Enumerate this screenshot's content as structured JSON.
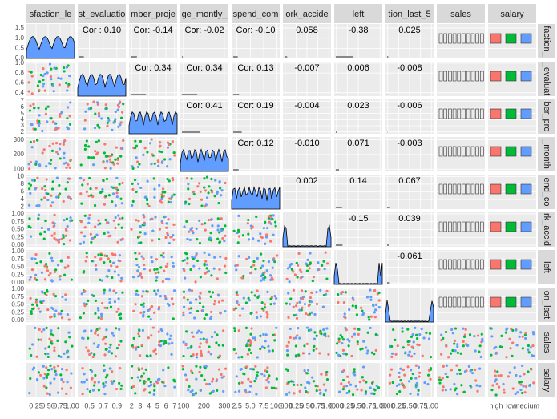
{
  "chart_data": {
    "type": "scatter-matrix",
    "group_colors": [
      "#F8766D",
      "#00BA38",
      "#619CFF"
    ],
    "columns": [
      {
        "strip": "sfaction_le",
        "lim": [
          0.05,
          1.05
        ],
        "ticks": [
          0.25,
          {
            "value": 0.5,
            "label": "0.50"
          },
          0.75,
          {
            "value": 1,
            "label": "1.00"
          }
        ]
      },
      {
        "strip": "st_evaluatio",
        "lim": [
          0.33,
          1.03
        ],
        "ticks": [
          0.5,
          0.7,
          0.9
        ]
      },
      {
        "strip": "mber_proje",
        "lim": [
          1.7,
          7.3
        ],
        "ticks": [
          2,
          3,
          4,
          5,
          6,
          7
        ]
      },
      {
        "strip": "ge_montly_",
        "lim": [
          85,
          320
        ],
        "ticks": [
          100,
          200,
          300
        ]
      },
      {
        "strip": "spend_com",
        "lim": [
          1.5,
          10.5
        ],
        "ticks": [
          2.5,
          {
            "value": 5,
            "label": "5.0"
          },
          7.5,
          {
            "value": 10,
            "label": "10.0"
          }
        ]
      },
      {
        "strip": "ork_accide",
        "lim": [
          -0.05,
          1.05
        ],
        "ticks": [
          {
            "value": 0,
            "label": "0.00"
          },
          0.25,
          {
            "value": 0.5,
            "label": "0.50"
          },
          0.75,
          {
            "value": 1,
            "label": "1.00"
          }
        ]
      },
      {
        "strip": "left",
        "lim": [
          -0.05,
          1.05
        ],
        "ticks": [
          {
            "value": 0,
            "label": "0.00"
          },
          0.25,
          {
            "value": 0.5,
            "label": "0.50"
          },
          0.75,
          {
            "value": 1,
            "label": "1.00"
          }
        ]
      },
      {
        "strip": "tion_last_5",
        "lim": [
          -0.05,
          1.05
        ],
        "ticks": [
          {
            "value": 0,
            "label": "0.00"
          },
          0.25,
          {
            "value": 0.5,
            "label": "0.50"
          },
          0.75,
          {
            "value": 1,
            "label": "1.00"
          }
        ]
      },
      {
        "strip": "sales"
      },
      {
        "strip": "salary",
        "categories": [
          "high",
          "low",
          "medium"
        ]
      }
    ],
    "rows": [
      {
        "strip": "faction_",
        "lim": [
          0,
          1.7
        ],
        "ticks": [
          {
            "value": 0,
            "label": "0.0"
          },
          0.5,
          {
            "value": 1,
            "label": "1.0"
          },
          1.5
        ]
      },
      {
        "strip": "_evaluat",
        "lim": [
          0.33,
          1.03
        ],
        "ticks": [
          0.4,
          0.6,
          0.8,
          {
            "value": 1,
            "label": "1.0"
          }
        ]
      },
      {
        "strip": "ber_pro",
        "lim": [
          1.7,
          7.3
        ],
        "ticks": [
          2,
          3,
          4,
          5,
          6,
          7
        ]
      },
      {
        "strip": "_month",
        "lim": [
          85,
          320
        ],
        "ticks": [
          100,
          200,
          300
        ]
      },
      {
        "strip": "end_co",
        "lim": [
          1.5,
          10.5
        ],
        "ticks": [
          2,
          4,
          6,
          8,
          10
        ]
      },
      {
        "strip": "rk_accid",
        "lim": [
          -0.05,
          1.05
        ],
        "ticks": [
          {
            "value": 0,
            "label": "0.00"
          },
          0.25,
          {
            "value": 0.5,
            "label": "0.50"
          },
          0.75,
          {
            "value": 1,
            "label": "1.00"
          }
        ]
      },
      {
        "strip": "left",
        "lim": [
          -0.05,
          1.05
        ],
        "ticks": [
          {
            "value": 0,
            "label": "0.00"
          },
          0.25,
          {
            "value": 0.5,
            "label": "0.50"
          },
          0.75,
          {
            "value": 1,
            "label": "1.00"
          }
        ]
      },
      {
        "strip": "on_last",
        "lim": [
          -0.05,
          1.05
        ],
        "ticks": [
          {
            "value": 0,
            "label": "0.00"
          },
          0.25,
          {
            "value": 0.5,
            "label": "0.50"
          },
          0.75,
          {
            "value": 1,
            "label": "1.00"
          }
        ]
      },
      {
        "strip": "sales"
      },
      {
        "strip": "salary"
      }
    ],
    "corr": [
      [
        0.1,
        -0.14,
        -0.02,
        -0.1,
        0.058,
        -0.38,
        0.025
      ],
      [
        0.34,
        0.34,
        0.13,
        -0.007,
        0.006,
        -0.008
      ],
      [
        0.41,
        0.19,
        -0.004,
        0.023,
        -0.006
      ],
      [
        0.12,
        -0.01,
        0.071,
        -0.003
      ],
      [
        0.002,
        0.14,
        0.067
      ],
      [
        -0.15,
        0.039
      ],
      [
        -0.061
      ]
    ],
    "corr_labels": [
      [
        "Cor : 0.10",
        "Cor: -0.14",
        "Cor: -0.02",
        "Cor: -0.10",
        "0.058",
        "-0.38",
        "0.025"
      ],
      [
        "Cor: 0.34",
        "Cor: 0.34",
        "Cor: 0.13",
        "-0.007",
        "0.006",
        "-0.008"
      ],
      [
        "Cor: 0.41",
        "Cor: 0.19",
        "-0.004",
        "0.023",
        "-0.006"
      ],
      [
        "Cor: 0.12",
        "-0.010",
        "0.071",
        "-0.003"
      ],
      [
        "0.002",
        "0.14",
        "0.067"
      ],
      [
        "-0.15",
        "0.039"
      ],
      [
        "-0.061"
      ]
    ]
  }
}
